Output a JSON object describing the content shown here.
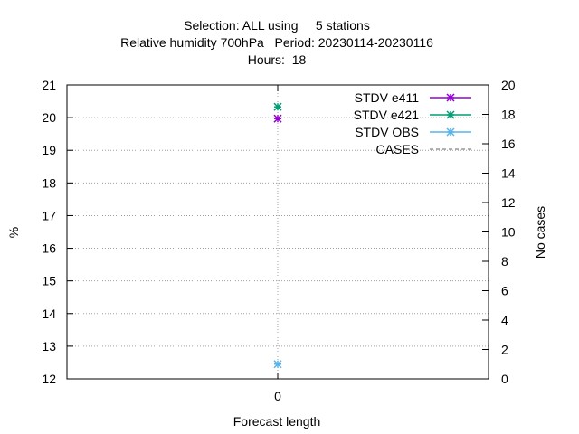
{
  "chart_data": {
    "type": "scatter",
    "title_lines": [
      "Selection: ALL using     5 stations",
      "Relative humidity 700hPa   Period: 20230114-20230116",
      "Hours:  18"
    ],
    "xlabel": "Forecast length",
    "ylabel": "%",
    "y2label": "No cases",
    "x_categories": [
      "0"
    ],
    "ylim": [
      12,
      21
    ],
    "yticks": [
      "12",
      "13",
      "14",
      "15",
      "16",
      "17",
      "18",
      "19",
      "20",
      "21"
    ],
    "y2lim": [
      0,
      20
    ],
    "y2ticks": [
      "0",
      "2",
      "4",
      "6",
      "8",
      "10",
      "12",
      "14",
      "16",
      "18",
      "20"
    ],
    "grid": true,
    "legend_position": "top-right",
    "series": [
      {
        "name": "STDV e411",
        "color": "#9400d3",
        "style": "line-points",
        "marker": "cross-star",
        "x": [
          "0"
        ],
        "y": [
          19.97
        ]
      },
      {
        "name": "STDV e421",
        "color": "#009e73",
        "style": "line-points",
        "marker": "cross-star",
        "x": [
          "0"
        ],
        "y": [
          20.33
        ]
      },
      {
        "name": "STDV OBS",
        "color": "#56b4e9",
        "style": "line-points",
        "marker": "cross-star",
        "x": [
          "0"
        ],
        "y": [
          12.45
        ]
      },
      {
        "name": "CASES",
        "color": "#999999",
        "style": "dashed",
        "axis": "y2",
        "x": [],
        "y": []
      }
    ]
  }
}
